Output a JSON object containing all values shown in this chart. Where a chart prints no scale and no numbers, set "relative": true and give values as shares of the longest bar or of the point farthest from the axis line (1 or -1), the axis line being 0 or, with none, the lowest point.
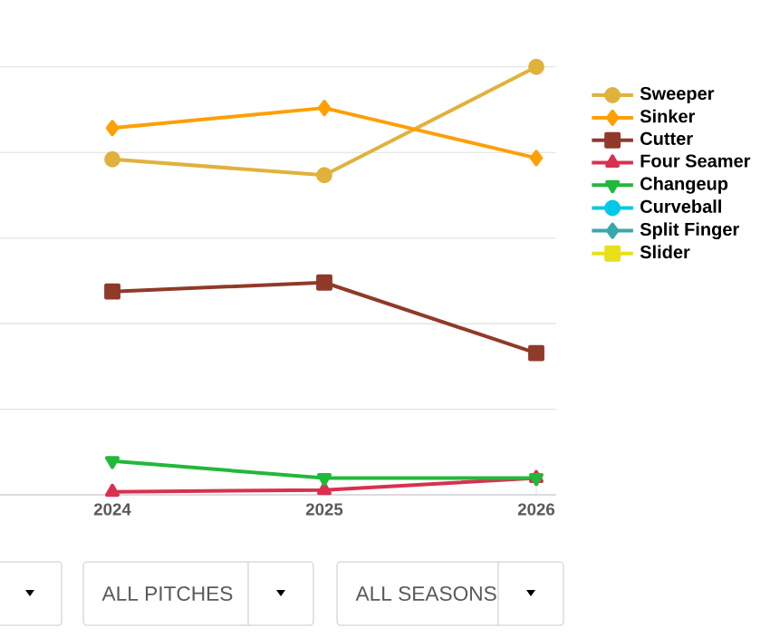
{
  "chart_data": {
    "type": "line",
    "relative": true,
    "categories": [
      "2024",
      "2025",
      "2026"
    ],
    "series": [
      {
        "name": "Sweeper",
        "color": "#e0b23c",
        "marker": "circle",
        "values": [
          0.784,
          0.747,
          1
        ]
      },
      {
        "name": "Sinker",
        "color": "#ff9f00",
        "marker": "diamond",
        "values": [
          0.857,
          0.904,
          0.787
        ]
      },
      {
        "name": "Cutter",
        "color": "#903a2a",
        "marker": "square",
        "values": [
          0.475,
          0.496,
          0.331
        ]
      },
      {
        "name": "Four Seamer",
        "color": "#d9304f",
        "marker": "triangle",
        "values": [
          0.007,
          0.011,
          0.039
        ]
      },
      {
        "name": "Changeup",
        "color": "#22b83a",
        "marker": "triangle-down",
        "values": [
          0.079,
          0.039,
          0.039
        ]
      },
      {
        "name": "Curveball",
        "color": "#00c8e8",
        "marker": "circle",
        "values": [
          null,
          null,
          null
        ]
      },
      {
        "name": "Split Finger",
        "color": "#3aa8a8",
        "marker": "diamond",
        "values": [
          null,
          null,
          null
        ]
      },
      {
        "name": "Slider",
        "color": "#e8e01a",
        "marker": "square",
        "values": [
          null,
          null,
          null
        ]
      }
    ],
    "grid": "y",
    "legend": "right",
    "tick_labels": "x",
    "annotations": [
      "ALL PITCHES",
      "ALL SEASONS"
    ]
  }
}
